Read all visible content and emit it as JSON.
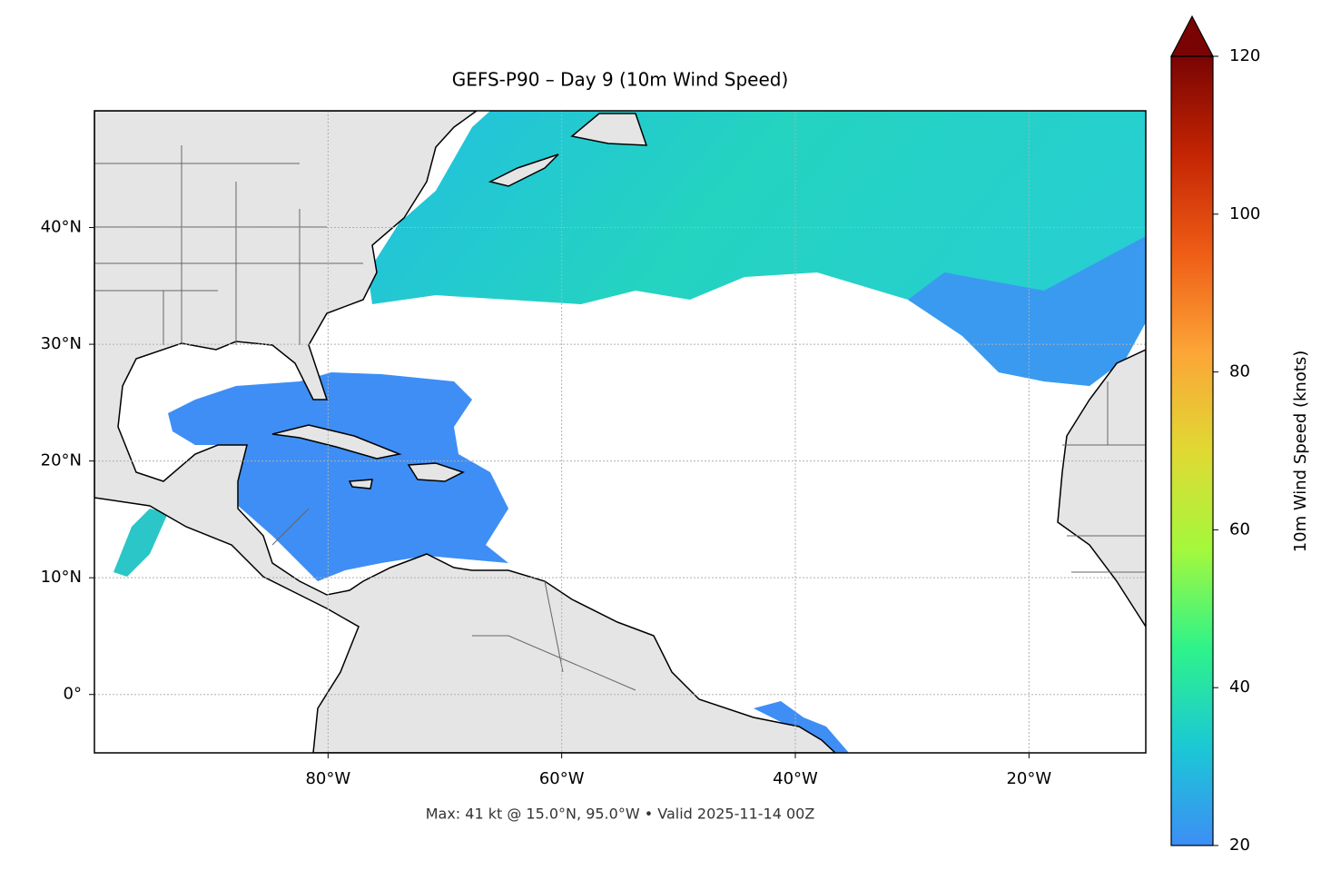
{
  "chart_data": {
    "type": "map",
    "title": "GEFS-P90 – Day 9 (10m Wind Speed)",
    "footnote": "Max: 41 kt @ 15.0°N, 95.0°W • Valid 2025-11-14 00Z",
    "xlim": [
      -100,
      -10
    ],
    "ylim": [
      -5,
      50
    ],
    "xticks": [
      {
        "value": -80,
        "label": "80°W"
      },
      {
        "value": -60,
        "label": "60°W"
      },
      {
        "value": -40,
        "label": "40°W"
      },
      {
        "value": -20,
        "label": "20°W"
      }
    ],
    "yticks": [
      {
        "value": 0,
        "label": "0°"
      },
      {
        "value": 10,
        "label": "10°N"
      },
      {
        "value": 20,
        "label": "20°N"
      },
      {
        "value": 30,
        "label": "30°N"
      },
      {
        "value": 40,
        "label": "40°N"
      }
    ],
    "grid": true,
    "colorbar": {
      "label": "10m Wind Speed (knots)",
      "lim": [
        20,
        120
      ],
      "ticks": [
        20,
        40,
        60,
        80,
        100,
        120
      ],
      "extend": "max",
      "colors": [
        "#3d8ef6",
        "#1bc8d5",
        "#2ef38a",
        "#a4f83c",
        "#e0d934",
        "#fca537",
        "#ef5d16",
        "#c42503",
        "#7a0403"
      ]
    }
  }
}
